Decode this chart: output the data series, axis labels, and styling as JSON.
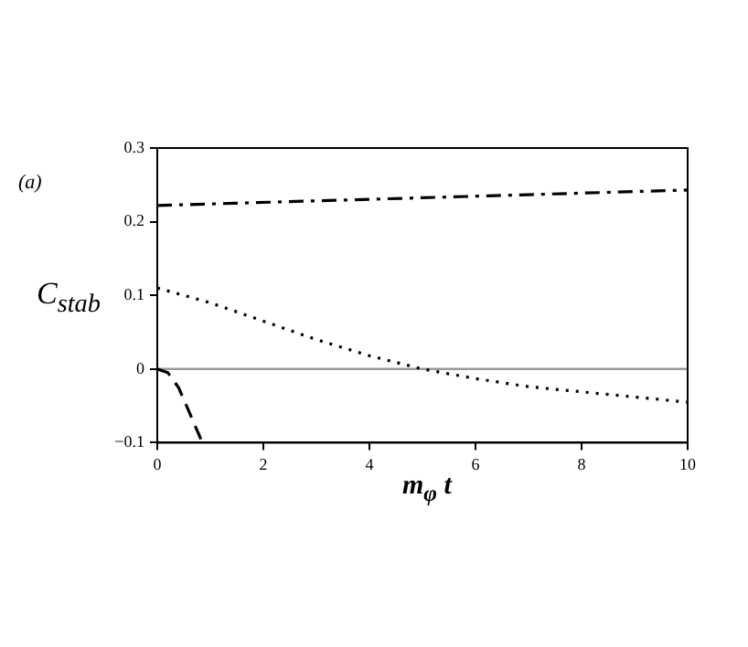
{
  "chart_data": {
    "type": "line",
    "xlabel": "m$_{φ}$ t",
    "ylabel": "C$_{stab}$",
    "annotations": [
      "(a)"
    ],
    "xlim": [
      0,
      10
    ],
    "xticks": [
      0,
      2,
      4,
      6,
      8,
      10
    ],
    "ylim": [
      -0.1,
      0.3
    ],
    "yticks": [
      {
        "value": -0.1,
        "label": "−0.1"
      },
      0,
      0.1,
      0.2,
      0.3
    ],
    "grid": false,
    "legend": false,
    "marker": "none",
    "ref_lines": [
      {
        "axis": "y",
        "value": 0,
        "color": "#999999",
        "line_style": "solid"
      }
    ],
    "series": [
      {
        "color": "#000000",
        "line_style": "dashdot",
        "x": [
          0,
          10
        ],
        "values": [
          0.222,
          0.243
        ]
      },
      {
        "color": "#000000",
        "line_style": "dotted",
        "x": [
          0,
          1,
          2,
          3,
          4,
          5,
          6,
          7,
          8,
          9,
          10
        ],
        "values": [
          0.11,
          0.09,
          0.065,
          0.04,
          0.018,
          0.0,
          -0.013,
          -0.024,
          -0.031,
          -0.038,
          -0.045
        ]
      },
      {
        "color": "#000000",
        "line_style": "dashed",
        "x": [
          0,
          0.2,
          0.4,
          0.6,
          0.85
        ],
        "values": [
          0,
          -0.005,
          -0.025,
          -0.058,
          -0.1
        ]
      }
    ]
  }
}
